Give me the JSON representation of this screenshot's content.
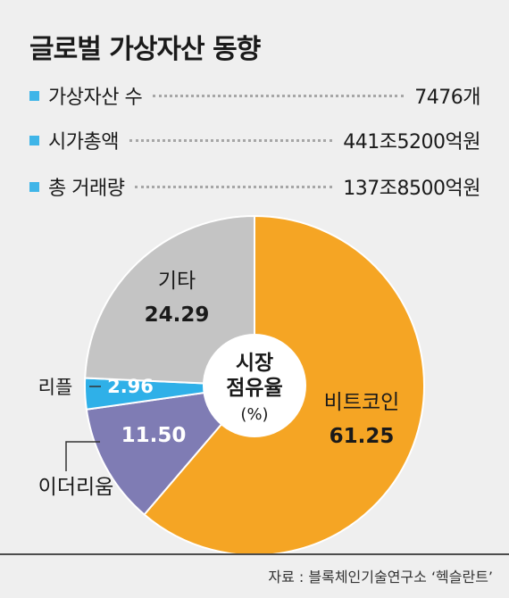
{
  "title": "글로벌 가상자산 동향",
  "stats": [
    {
      "label": "가상자산 수",
      "value": "7476개"
    },
    {
      "label": "시가총액",
      "value": "441조5200억원"
    },
    {
      "label": "총 거래량",
      "value": "137조8500억원"
    }
  ],
  "colors": {
    "bullet": "#3fb5e8",
    "bitcoin": "#f5a524",
    "ethereum": "#7f7cb4",
    "ripple": "#2fb0e8",
    "other": "#c4c4c4",
    "hole": "#ffffff",
    "leader": "#a6a6a6"
  },
  "chart_data": {
    "type": "pie",
    "title": "",
    "center_label": {
      "line1": "시장",
      "line2": "점유율",
      "unit": "(%)"
    },
    "slices": [
      {
        "name": "비트코인",
        "value": 61.25,
        "value_label": "61.25",
        "color_key": "bitcoin"
      },
      {
        "name": "이더리움",
        "value": 11.5,
        "value_label": "11.50",
        "color_key": "ethereum"
      },
      {
        "name": "리플",
        "value": 2.96,
        "value_label": "2.96",
        "color_key": "ripple"
      },
      {
        "name": "기타",
        "value": 24.29,
        "value_label": "24.29",
        "color_key": "other"
      }
    ]
  },
  "source": "자료 : 블록체인기술연구소 ‘헥슬란트’"
}
